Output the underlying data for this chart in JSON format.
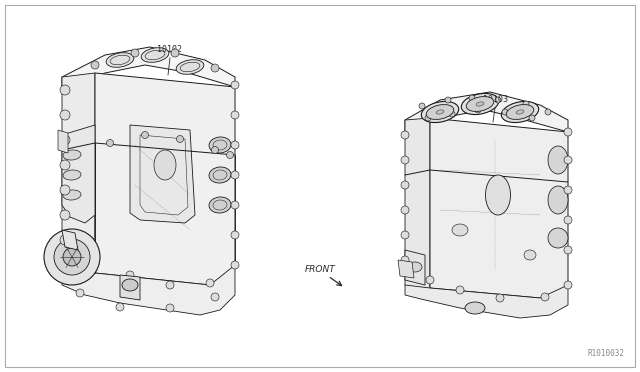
{
  "background_color": "#ffffff",
  "fig_width": 6.4,
  "fig_height": 3.72,
  "dpi": 100,
  "label_10102": "10102",
  "label_10103": "10103",
  "label_front": "FRONT",
  "label_ref": "R1010032",
  "text_color": "#2a2a2a",
  "line_color": "#1a1a1a",
  "line_width": 0.6,
  "border_color": "#bbbbbb"
}
